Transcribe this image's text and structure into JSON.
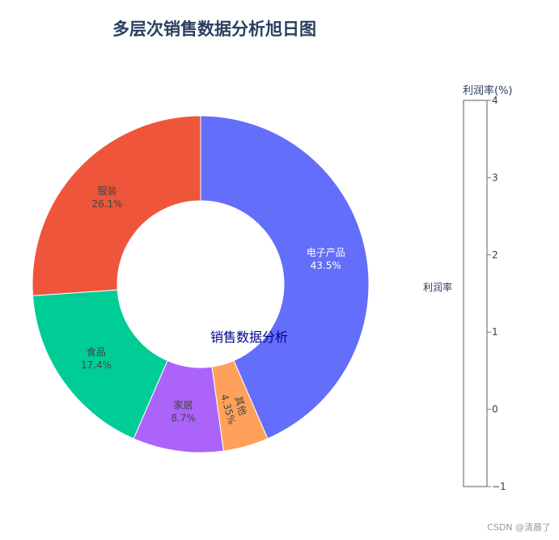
{
  "chart_data": {
    "type": "pie",
    "title": "多层次销售数据分析旭日图",
    "center_label": "销售数据分析",
    "slices": [
      {
        "label": "电子产品",
        "value": 43.5,
        "pct_text": "43.5%",
        "color": "#636efa",
        "text_color": "#ffffff"
      },
      {
        "label": "其他",
        "value": 4.35,
        "pct_text": "4.35%",
        "color": "#ffa15a",
        "text_color": "#444444"
      },
      {
        "label": "家居",
        "value": 8.7,
        "pct_text": "8.7%",
        "color": "#ab63fa",
        "text_color": "#444444"
      },
      {
        "label": "食品",
        "value": 17.4,
        "pct_text": "17.4%",
        "color": "#00cc96",
        "text_color": "#444444"
      },
      {
        "label": "服装",
        "value": 26.1,
        "pct_text": "26.1%",
        "color": "#ef553b",
        "text_color": "#444444"
      }
    ],
    "colorbar": {
      "title": "利润率(%)",
      "range": [
        -1,
        4
      ],
      "ticks": [
        "4",
        "3",
        "2",
        "1",
        "0",
        "−1"
      ]
    },
    "side_label": "利润率"
  },
  "watermark": "CSDN @清晨了",
  "colors": {
    "title": "#2a3f5f",
    "center_label": "#00008b",
    "axis": "#2a3f5f",
    "colorbar_border": "#777777"
  }
}
